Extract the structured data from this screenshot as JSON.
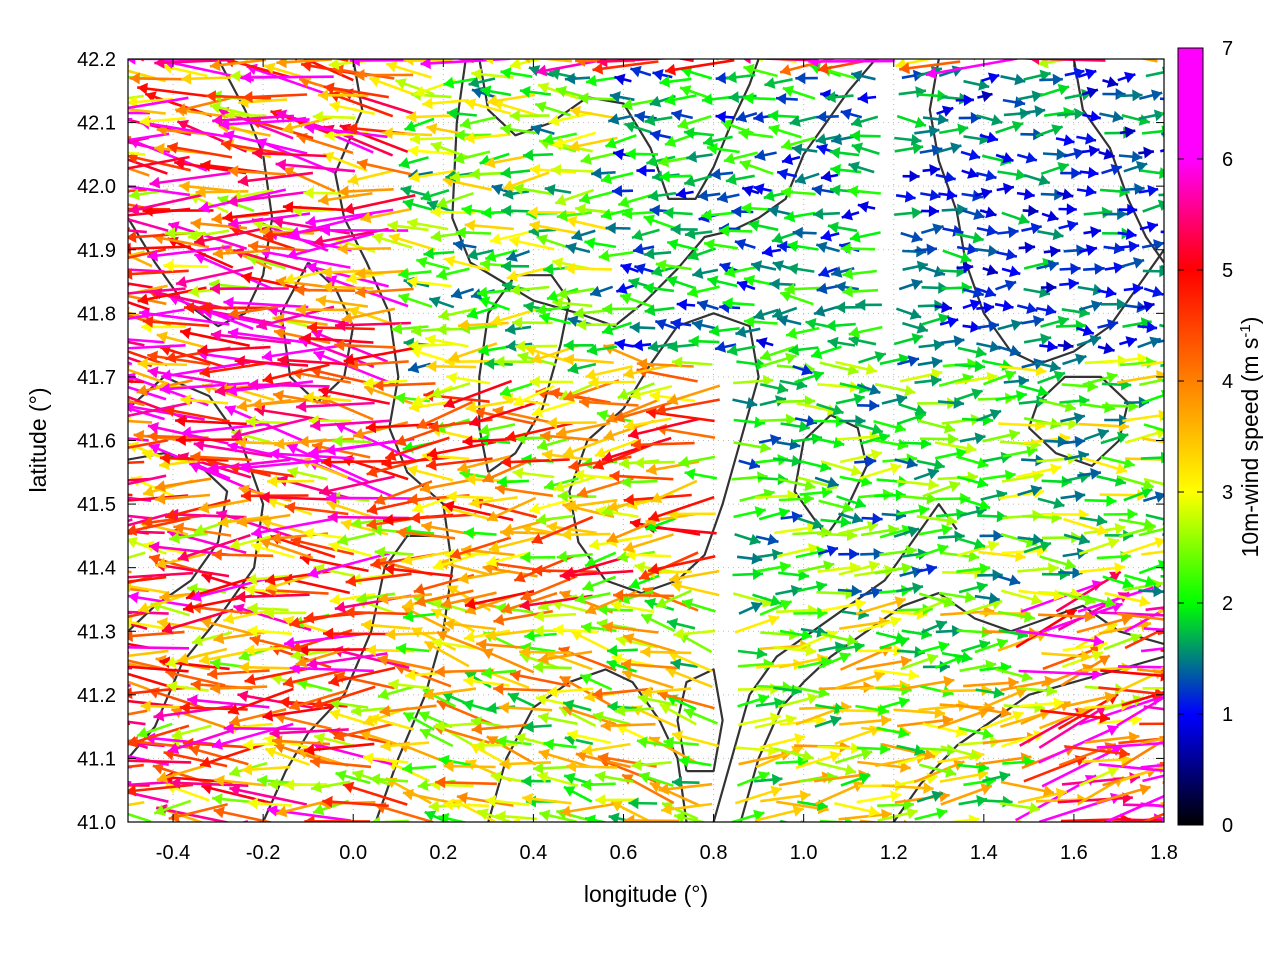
{
  "chart_data": {
    "type": "vector-field",
    "title": "",
    "xlabel": "longitude (°)",
    "ylabel": "latitude (°)",
    "xlim": [
      -0.5,
      1.8
    ],
    "ylim": [
      41.0,
      42.2
    ],
    "xticks": [
      "-0.4",
      "-0.2",
      "0.0",
      "0.2",
      "0.4",
      "0.6",
      "0.8",
      "1.0",
      "1.2",
      "1.4",
      "1.6",
      "1.8"
    ],
    "xtick_values": [
      -0.4,
      -0.2,
      0.0,
      0.2,
      0.4,
      0.6,
      0.8,
      1.0,
      1.2,
      1.4,
      1.6,
      1.8
    ],
    "yticks": [
      "41.0",
      "41.1",
      "41.2",
      "41.3",
      "41.4",
      "41.5",
      "41.6",
      "41.7",
      "41.8",
      "41.9",
      "42.0",
      "42.1",
      "42.2"
    ],
    "ytick_values": [
      41.0,
      41.1,
      41.2,
      41.3,
      41.4,
      41.5,
      41.6,
      41.7,
      41.8,
      41.9,
      42.0,
      42.1,
      42.2
    ],
    "grid": true,
    "colorbar": {
      "label": "10m-wind speed (m s",
      "label_sup": "-1",
      "label_end": ")",
      "range": [
        0,
        7
      ],
      "ticks": [
        "0",
        "1",
        "2",
        "3",
        "4",
        "5",
        "6",
        "7"
      ],
      "tick_values": [
        0,
        1,
        2,
        3,
        4,
        5,
        6,
        7
      ],
      "colors": [
        "#000000",
        "#0000ff",
        "#00ff00",
        "#ffff00",
        "#ff8000",
        "#ff0000",
        "#ff00ff"
      ]
    },
    "wind_regions": [
      {
        "lon": [
          -0.5,
          0.15
        ],
        "lat": [
          41.5,
          42.2
        ],
        "dir_deg": 175,
        "speed": 4.6
      },
      {
        "lon": [
          -0.5,
          0.15
        ],
        "lat": [
          41.0,
          41.5
        ],
        "dir_deg": 180,
        "speed": 4.2
      },
      {
        "lon": [
          0.15,
          0.6
        ],
        "lat": [
          41.7,
          42.2
        ],
        "dir_deg": 180,
        "speed": 2.4
      },
      {
        "lon": [
          0.15,
          0.85
        ],
        "lat": [
          41.35,
          41.7
        ],
        "dir_deg": 185,
        "speed": 3.6
      },
      {
        "lon": [
          0.15,
          0.85
        ],
        "lat": [
          41.0,
          41.35
        ],
        "dir_deg": 170,
        "speed": 3.0
      },
      {
        "lon": [
          0.6,
          1.2
        ],
        "lat": [
          41.75,
          42.2
        ],
        "dir_deg": 180,
        "speed": 1.6
      },
      {
        "lon": [
          0.85,
          1.35
        ],
        "lat": [
          41.35,
          41.75
        ],
        "dir_deg": 0,
        "speed": 2.0
      },
      {
        "lon": [
          1.2,
          1.8
        ],
        "lat": [
          41.75,
          42.2
        ],
        "dir_deg": 0,
        "speed": 1.3
      },
      {
        "lon": [
          1.35,
          1.8
        ],
        "lat": [
          41.35,
          41.75
        ],
        "dir_deg": 2,
        "speed": 2.4
      },
      {
        "lon": [
          0.85,
          1.45
        ],
        "lat": [
          41.0,
          41.35
        ],
        "dir_deg": 5,
        "speed": 2.7
      },
      {
        "lon": [
          1.45,
          1.8
        ],
        "lat": [
          41.0,
          41.35
        ],
        "dir_deg": 12,
        "speed": 4.6
      }
    ],
    "contours": [
      [
        [
          0.25,
          42.2
        ],
        [
          0.23,
          42.1
        ],
        [
          0.22,
          41.95
        ],
        [
          0.26,
          41.88
        ],
        [
          0.33,
          41.85
        ],
        [
          0.4,
          41.82
        ],
        [
          0.5,
          41.8
        ],
        [
          0.58,
          41.78
        ],
        [
          0.65,
          41.82
        ],
        [
          0.72,
          41.87
        ],
        [
          0.78,
          41.92
        ],
        [
          0.84,
          41.93
        ],
        [
          0.9,
          41.95
        ],
        [
          0.96,
          41.98
        ],
        [
          1.0,
          42.05
        ],
        [
          1.05,
          42.1
        ],
        [
          1.1,
          42.15
        ],
        [
          1.16,
          42.2
        ]
      ],
      [
        [
          0.28,
          42.2
        ],
        [
          0.3,
          42.12
        ],
        [
          0.36,
          42.08
        ],
        [
          0.44,
          42.1
        ],
        [
          0.52,
          42.14
        ],
        [
          0.6,
          42.13
        ],
        [
          0.66,
          42.06
        ],
        [
          0.7,
          41.98
        ],
        [
          0.76,
          41.98
        ],
        [
          0.8,
          42.03
        ],
        [
          0.84,
          42.1
        ],
        [
          0.88,
          42.16
        ],
        [
          0.9,
          42.2
        ]
      ],
      [
        [
          0.0,
          42.2
        ],
        [
          0.02,
          42.12
        ],
        [
          -0.04,
          42.02
        ],
        [
          -0.02,
          41.95
        ],
        [
          0.03,
          41.88
        ],
        [
          0.08,
          41.8
        ],
        [
          0.1,
          41.7
        ],
        [
          0.08,
          41.62
        ],
        [
          0.12,
          41.55
        ],
        [
          0.2,
          41.5
        ],
        [
          0.22,
          41.4
        ],
        [
          0.2,
          41.3
        ],
        [
          0.16,
          41.2
        ],
        [
          0.1,
          41.1
        ],
        [
          0.05,
          41.0
        ]
      ],
      [
        [
          -0.5,
          41.65
        ],
        [
          -0.42,
          41.7
        ],
        [
          -0.32,
          41.67
        ],
        [
          -0.25,
          41.6
        ],
        [
          -0.2,
          41.5
        ],
        [
          -0.22,
          41.4
        ],
        [
          -0.3,
          41.32
        ],
        [
          -0.38,
          41.25
        ],
        [
          -0.44,
          41.15
        ],
        [
          -0.5,
          41.1
        ]
      ],
      [
        [
          -0.5,
          41.95
        ],
        [
          -0.44,
          41.88
        ],
        [
          -0.38,
          41.82
        ],
        [
          -0.3,
          41.78
        ],
        [
          -0.24,
          41.8
        ],
        [
          -0.2,
          41.86
        ],
        [
          -0.18,
          41.95
        ],
        [
          -0.2,
          42.05
        ],
        [
          -0.24,
          42.12
        ],
        [
          -0.3,
          42.2
        ]
      ],
      [
        [
          -0.2,
          41.0
        ],
        [
          -0.15,
          41.08
        ],
        [
          -0.1,
          41.14
        ],
        [
          -0.02,
          41.2
        ],
        [
          0.04,
          41.3
        ],
        [
          0.07,
          41.4
        ],
        [
          0.12,
          41.45
        ],
        [
          0.18,
          41.45
        ]
      ],
      [
        [
          0.3,
          41.0
        ],
        [
          0.34,
          41.1
        ],
        [
          0.4,
          41.18
        ],
        [
          0.48,
          41.22
        ],
        [
          0.56,
          41.24
        ],
        [
          0.62,
          41.22
        ],
        [
          0.68,
          41.16
        ],
        [
          0.72,
          41.1
        ],
        [
          0.74,
          41.0
        ]
      ],
      [
        [
          0.3,
          41.55
        ],
        [
          0.36,
          41.58
        ],
        [
          0.42,
          41.65
        ],
        [
          0.46,
          41.75
        ],
        [
          0.48,
          41.82
        ],
        [
          0.44,
          41.86
        ],
        [
          0.36,
          41.86
        ],
        [
          0.3,
          41.8
        ],
        [
          0.28,
          41.7
        ],
        [
          0.28,
          41.62
        ],
        [
          0.3,
          41.55
        ]
      ],
      [
        [
          0.6,
          41.65
        ],
        [
          0.66,
          41.72
        ],
        [
          0.72,
          41.78
        ],
        [
          0.8,
          41.8
        ],
        [
          0.88,
          41.78
        ],
        [
          0.9,
          41.7
        ],
        [
          0.86,
          41.6
        ],
        [
          0.82,
          41.5
        ],
        [
          0.78,
          41.42
        ],
        [
          0.72,
          41.38
        ],
        [
          0.64,
          41.36
        ],
        [
          0.56,
          41.38
        ],
        [
          0.5,
          41.44
        ],
        [
          0.48,
          41.52
        ],
        [
          0.52,
          41.6
        ],
        [
          0.6,
          41.65
        ]
      ],
      [
        [
          0.8,
          41.0
        ],
        [
          0.84,
          41.1
        ],
        [
          0.88,
          41.2
        ],
        [
          0.94,
          41.26
        ],
        [
          1.02,
          41.3
        ],
        [
          1.1,
          41.34
        ],
        [
          1.18,
          41.38
        ],
        [
          1.24,
          41.44
        ],
        [
          1.3,
          41.5
        ],
        [
          1.34,
          41.46
        ]
      ],
      [
        [
          0.86,
          41.0
        ],
        [
          0.9,
          41.1
        ],
        [
          0.95,
          41.18
        ],
        [
          1.0,
          41.22
        ],
        [
          1.06,
          41.26
        ],
        [
          1.14,
          41.3
        ],
        [
          1.22,
          41.34
        ],
        [
          1.3,
          41.36
        ],
        [
          1.38,
          41.32
        ],
        [
          1.46,
          41.3
        ],
        [
          1.54,
          41.32
        ],
        [
          1.62,
          41.34
        ],
        [
          1.7,
          41.3
        ],
        [
          1.8,
          41.28
        ]
      ],
      [
        [
          1.2,
          41.0
        ],
        [
          1.26,
          41.06
        ],
        [
          1.34,
          41.12
        ],
        [
          1.42,
          41.16
        ],
        [
          1.5,
          41.2
        ],
        [
          1.6,
          41.22
        ],
        [
          1.7,
          41.24
        ],
        [
          1.8,
          41.26
        ]
      ],
      [
        [
          1.3,
          42.2
        ],
        [
          1.28,
          42.12
        ],
        [
          1.3,
          42.04
        ],
        [
          1.34,
          41.96
        ],
        [
          1.36,
          41.88
        ],
        [
          1.4,
          41.8
        ],
        [
          1.46,
          41.74
        ],
        [
          1.52,
          41.72
        ],
        [
          1.6,
          41.74
        ],
        [
          1.68,
          41.78
        ],
        [
          1.74,
          41.84
        ],
        [
          1.8,
          41.9
        ]
      ],
      [
        [
          1.6,
          42.2
        ],
        [
          1.62,
          42.12
        ],
        [
          1.68,
          42.06
        ],
        [
          1.72,
          41.98
        ],
        [
          1.76,
          41.92
        ],
        [
          1.8,
          41.88
        ]
      ],
      [
        [
          1.5,
          41.62
        ],
        [
          1.56,
          41.58
        ],
        [
          1.64,
          41.56
        ],
        [
          1.7,
          41.6
        ],
        [
          1.72,
          41.66
        ],
        [
          1.66,
          41.7
        ],
        [
          1.58,
          41.7
        ],
        [
          1.52,
          41.66
        ],
        [
          1.5,
          41.62
        ]
      ],
      [
        [
          1.05,
          41.45
        ],
        [
          1.1,
          41.5
        ],
        [
          1.14,
          41.56
        ],
        [
          1.12,
          41.62
        ],
        [
          1.06,
          41.64
        ],
        [
          1.0,
          41.6
        ],
        [
          0.98,
          41.52
        ],
        [
          1.05,
          41.45
        ]
      ],
      [
        [
          -0.5,
          41.3
        ],
        [
          -0.44,
          41.34
        ],
        [
          -0.36,
          41.38
        ],
        [
          -0.3,
          41.44
        ],
        [
          -0.28,
          41.52
        ],
        [
          -0.34,
          41.56
        ],
        [
          -0.42,
          41.58
        ],
        [
          -0.5,
          41.57
        ]
      ],
      [
        [
          0.74,
          41.08
        ],
        [
          0.72,
          41.16
        ],
        [
          0.74,
          41.22
        ],
        [
          0.8,
          41.24
        ],
        [
          0.82,
          41.16
        ],
        [
          0.8,
          41.08
        ],
        [
          0.74,
          41.08
        ]
      ],
      [
        [
          -0.1,
          41.88
        ],
        [
          -0.04,
          41.84
        ],
        [
          0.0,
          41.78
        ],
        [
          -0.02,
          41.7
        ],
        [
          -0.08,
          41.66
        ],
        [
          -0.14,
          41.7
        ],
        [
          -0.16,
          41.8
        ],
        [
          -0.1,
          41.88
        ]
      ]
    ]
  }
}
